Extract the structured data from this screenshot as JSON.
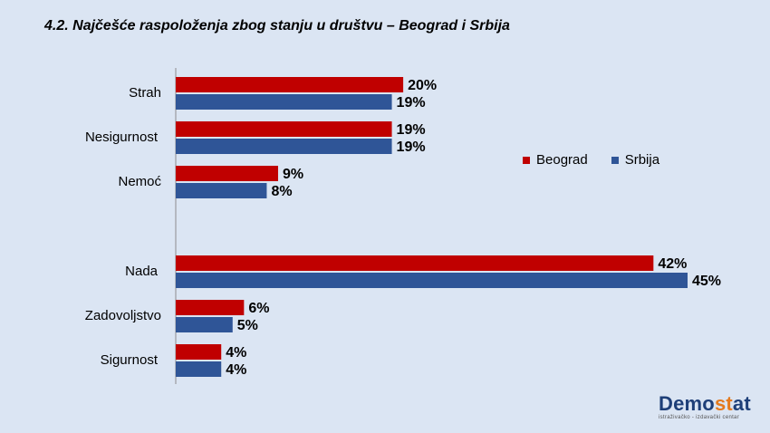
{
  "title": "4.2. Najčešće raspoloženja  zbog stanju u društvu – Beograd  i Srbija",
  "logo": {
    "part1": "Demo",
    "part2": "st",
    "part3": "at",
    "subtitle": "istraživačko - izdavački  centar"
  },
  "colors": {
    "beograd": "#c00000",
    "srbija": "#2f5597",
    "background": "#dbe5f3"
  },
  "chart_data": {
    "type": "bar",
    "orientation": "horizontal",
    "categories": [
      "Strah",
      "Nesigurnost",
      "Nemoć",
      "Nada",
      "Zadovoljstvo",
      "Sigurnost"
    ],
    "series": [
      {
        "name": "Beograd",
        "values": [
          20,
          19,
          9,
          42,
          6,
          4
        ],
        "labels": [
          "20%",
          "19%",
          "9%",
          "42%",
          "6%",
          "4%"
        ]
      },
      {
        "name": "Srbija",
        "values": [
          19,
          19,
          8,
          45,
          5,
          4
        ],
        "labels": [
          "19%",
          "19%",
          "8%",
          "45%",
          "5%",
          "4%"
        ]
      }
    ],
    "legend_position": "right",
    "grid": false
  }
}
